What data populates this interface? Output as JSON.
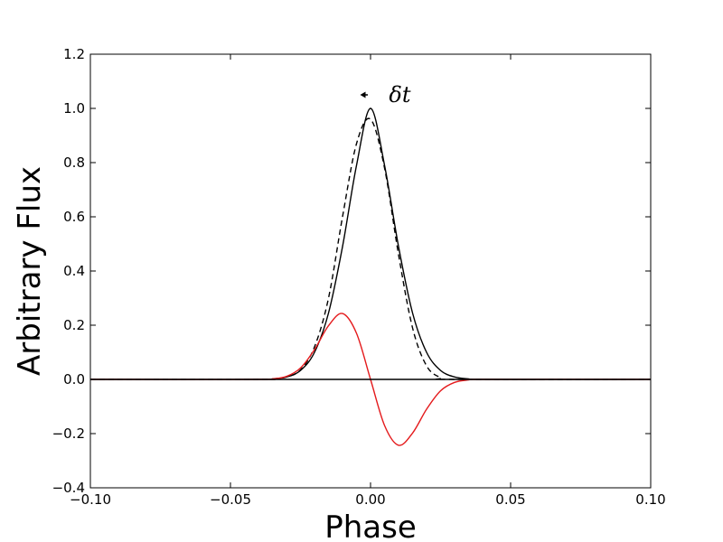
{
  "chart_data": {
    "type": "line",
    "title": "",
    "xlabel": "Phase",
    "ylabel": "Arbitrary Flux",
    "xlim": [
      -0.1,
      0.1
    ],
    "ylim": [
      -0.4,
      1.2
    ],
    "grid": false,
    "legend": "none",
    "xticks": [
      -0.1,
      -0.05,
      0.0,
      0.05,
      0.1
    ],
    "xtick_labels": [
      "−0.10",
      "−0.05",
      "0.00",
      "0.05",
      "0.10"
    ],
    "yticks": [
      -0.4,
      -0.2,
      0.0,
      0.2,
      0.4,
      0.6,
      0.8,
      1.0,
      1.2
    ],
    "ytick_labels": [
      "−0.4",
      "−0.2",
      "0.0",
      "0.2",
      "0.4",
      "0.6",
      "0.8",
      "1.0",
      "1.2"
    ],
    "series": [
      {
        "style": "solid",
        "color": "#000000",
        "x": [
          -0.1,
          -0.04,
          -0.035,
          -0.03,
          -0.025,
          -0.02,
          -0.015,
          -0.01,
          -0.005,
          0.0,
          0.005,
          0.01,
          0.015,
          0.02,
          0.025,
          0.03,
          0.035,
          0.04,
          0.1
        ],
        "y": [
          0.0,
          0.0,
          0.002,
          0.009,
          0.033,
          0.1,
          0.245,
          0.49,
          0.79,
          1.0,
          0.79,
          0.49,
          0.245,
          0.1,
          0.033,
          0.009,
          0.002,
          0.0,
          0.0
        ]
      },
      {
        "style": "dashed",
        "color": "#000000",
        "x": [
          -0.1,
          -0.04,
          -0.035,
          -0.03,
          -0.025,
          -0.02,
          -0.015,
          -0.01,
          -0.005,
          0.0,
          0.005,
          0.01,
          0.015,
          0.02,
          0.025,
          0.03,
          0.1
        ],
        "y": [
          0.0,
          0.0,
          0.002,
          0.009,
          0.035,
          0.12,
          0.3,
          0.6,
          0.87,
          0.96,
          0.78,
          0.46,
          0.19,
          0.05,
          0.007,
          0.0,
          0.0
        ]
      },
      {
        "style": "solid",
        "color": "#e41a1c",
        "x": [
          -0.1,
          -0.04,
          -0.035,
          -0.03,
          -0.025,
          -0.02,
          -0.015,
          -0.01,
          -0.005,
          0.0,
          0.005,
          0.01,
          0.015,
          0.02,
          0.025,
          0.03,
          0.035,
          0.04,
          0.1
        ],
        "y": [
          0.0,
          0.0,
          0.002,
          0.011,
          0.042,
          0.11,
          0.198,
          0.243,
          0.17,
          0.0,
          -0.17,
          -0.243,
          -0.198,
          -0.11,
          -0.042,
          -0.011,
          -0.002,
          0.0,
          0.0
        ]
      },
      {
        "style": "solid",
        "color": "#000000",
        "x": [
          -0.1,
          0.1
        ],
        "y": [
          0.0,
          0.0
        ]
      }
    ],
    "annotations": [
      {
        "text": "δt",
        "x": 0.004,
        "y": 1.05,
        "arrow_from": [
          0.0,
          1.05
        ],
        "arrow_to": [
          -0.005,
          1.05
        ]
      }
    ]
  }
}
